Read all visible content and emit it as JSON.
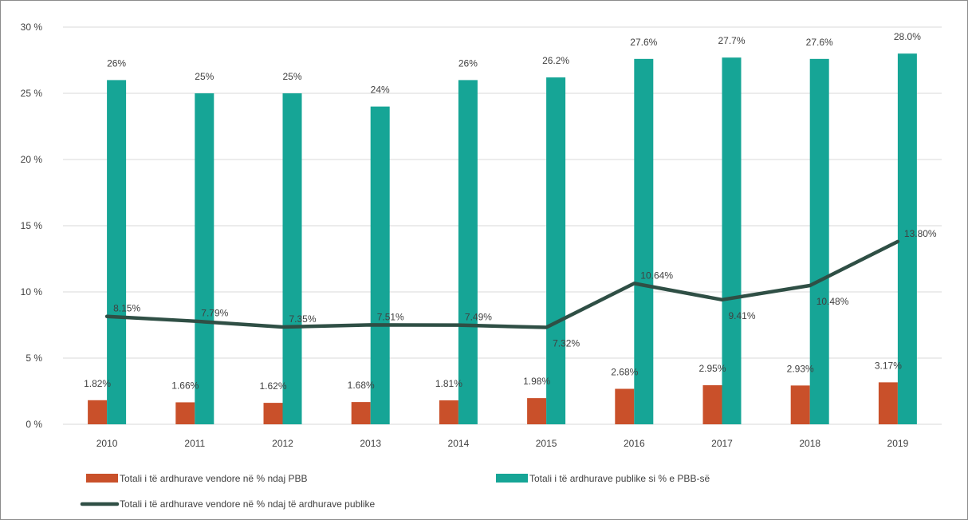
{
  "chart_data": {
    "type": "bar",
    "title": "",
    "categories": [
      "2010",
      "2011",
      "2012",
      "2013",
      "2014",
      "2015",
      "2016",
      "2017",
      "2018",
      "2019"
    ],
    "ylim": [
      0,
      30
    ],
    "y_ticks": [
      "0 %",
      "5 %",
      "10 %",
      "15 %",
      "20 %",
      "25 %",
      "30 %"
    ],
    "y_tick_values": [
      0,
      5,
      10,
      15,
      20,
      25,
      30
    ],
    "grid": true,
    "legend_position": "bottom",
    "series": [
      {
        "name": "Totali i të ardhurave vendore në % ndaj PBB",
        "kind": "bar",
        "color": "#c9502a",
        "values": [
          1.82,
          1.66,
          1.62,
          1.68,
          1.81,
          1.98,
          2.68,
          2.95,
          2.93,
          3.17
        ],
        "labels": [
          "1.82%",
          "1.66%",
          "1.62%",
          "1.68%",
          "1.81%",
          "1.98%",
          "2.68%",
          "2.95%",
          "2.93%",
          "3.17%"
        ]
      },
      {
        "name": "Totali i të ardhurave publike si % e PBB-së",
        "kind": "bar",
        "color": "#16a596",
        "values": [
          26,
          25,
          25,
          24,
          26,
          26.2,
          27.6,
          27.7,
          27.6,
          28.0
        ],
        "labels": [
          "26%",
          "25%",
          "25%",
          "24%",
          "26%",
          "26.2%",
          "27.6%",
          "27.7%",
          "27.6%",
          "28.0%"
        ]
      },
      {
        "name": "Totali i të ardhurave vendore në % ndaj të ardhurave publike",
        "kind": "line",
        "color": "#2f4f45",
        "values": [
          8.15,
          7.79,
          7.35,
          7.51,
          7.49,
          7.32,
          10.64,
          9.41,
          10.48,
          13.8
        ],
        "labels": [
          "8.15%",
          "7.79%",
          "7.35%",
          "7.51%",
          "7.49%",
          "7.32%",
          "10.64%",
          "9.41%",
          "10.48%",
          "13.80%"
        ]
      }
    ]
  }
}
